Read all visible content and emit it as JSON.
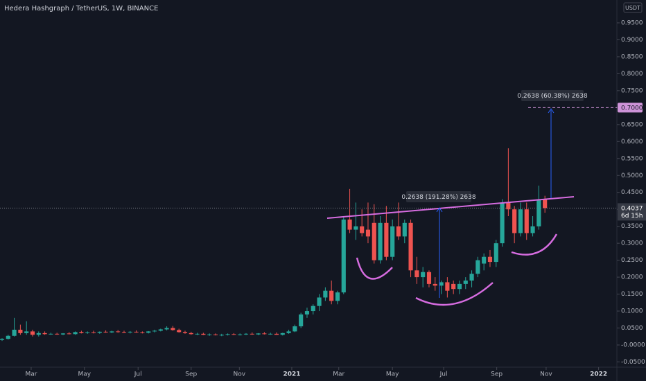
{
  "chart_data": {
    "type": "candlestick",
    "title": "Hedera Hashgraph / TetherUS, 1W, BINANCE",
    "currency": "USDT",
    "up_color": "#26a69a",
    "down_color": "#ef5350",
    "grid": false,
    "open": [
      0.015,
      0.018,
      0.027,
      0.045,
      0.035,
      0.04,
      0.03,
      0.035,
      0.032,
      0.033,
      0.031,
      0.034,
      0.032,
      0.038,
      0.035,
      0.037,
      0.036,
      0.039,
      0.037,
      0.04,
      0.038,
      0.037,
      0.039,
      0.037,
      0.036,
      0.04,
      0.042,
      0.046,
      0.05,
      0.044,
      0.038,
      0.035,
      0.032,
      0.033,
      0.03,
      0.031,
      0.029,
      0.03,
      0.032,
      0.03,
      0.031,
      0.033,
      0.031,
      0.034,
      0.032,
      0.033,
      0.03,
      0.035,
      0.04,
      0.055,
      0.09,
      0.1,
      0.115,
      0.14,
      0.16,
      0.13,
      0.155,
      0.37,
      0.34,
      0.35,
      0.34,
      0.36,
      0.25,
      0.36,
      0.26,
      0.35,
      0.32,
      0.36,
      0.22,
      0.2,
      0.215,
      0.18,
      0.175,
      0.185,
      0.18,
      0.165,
      0.18,
      0.19,
      0.21,
      0.24,
      0.26,
      0.245,
      0.3,
      0.42,
      0.4,
      0.33,
      0.4,
      0.33,
      0.35,
      0.43
    ],
    "high": [
      0.02,
      0.03,
      0.08,
      0.06,
      0.07,
      0.045,
      0.04,
      0.04,
      0.036,
      0.036,
      0.035,
      0.038,
      0.04,
      0.042,
      0.04,
      0.042,
      0.04,
      0.043,
      0.042,
      0.044,
      0.042,
      0.041,
      0.043,
      0.04,
      0.041,
      0.045,
      0.048,
      0.055,
      0.056,
      0.048,
      0.042,
      0.039,
      0.036,
      0.036,
      0.034,
      0.034,
      0.033,
      0.034,
      0.035,
      0.034,
      0.035,
      0.037,
      0.035,
      0.038,
      0.036,
      0.037,
      0.036,
      0.045,
      0.06,
      0.095,
      0.11,
      0.12,
      0.15,
      0.17,
      0.19,
      0.16,
      0.38,
      0.46,
      0.42,
      0.4,
      0.42,
      0.415,
      0.38,
      0.41,
      0.37,
      0.42,
      0.37,
      0.37,
      0.26,
      0.23,
      0.22,
      0.2,
      0.19,
      0.2,
      0.19,
      0.19,
      0.2,
      0.22,
      0.26,
      0.27,
      0.28,
      0.31,
      0.43,
      0.58,
      0.41,
      0.42,
      0.42,
      0.38,
      0.47,
      0.44
    ],
    "low": [
      0.012,
      0.016,
      0.025,
      0.03,
      0.03,
      0.025,
      0.025,
      0.03,
      0.03,
      0.03,
      0.029,
      0.031,
      0.03,
      0.034,
      0.033,
      0.034,
      0.033,
      0.036,
      0.035,
      0.036,
      0.035,
      0.034,
      0.036,
      0.034,
      0.034,
      0.037,
      0.04,
      0.043,
      0.042,
      0.036,
      0.033,
      0.03,
      0.029,
      0.029,
      0.027,
      0.028,
      0.026,
      0.028,
      0.029,
      0.028,
      0.029,
      0.03,
      0.029,
      0.031,
      0.03,
      0.03,
      0.028,
      0.033,
      0.038,
      0.05,
      0.08,
      0.09,
      0.1,
      0.13,
      0.12,
      0.12,
      0.15,
      0.33,
      0.31,
      0.32,
      0.3,
      0.24,
      0.24,
      0.25,
      0.25,
      0.31,
      0.3,
      0.2,
      0.18,
      0.17,
      0.17,
      0.16,
      0.15,
      0.14,
      0.15,
      0.15,
      0.165,
      0.17,
      0.2,
      0.22,
      0.23,
      0.23,
      0.29,
      0.38,
      0.3,
      0.32,
      0.31,
      0.32,
      0.34,
      0.39
    ],
    "close": [
      0.018,
      0.027,
      0.045,
      0.035,
      0.04,
      0.03,
      0.035,
      0.032,
      0.033,
      0.031,
      0.034,
      0.032,
      0.038,
      0.035,
      0.037,
      0.036,
      0.039,
      0.037,
      0.04,
      0.038,
      0.037,
      0.039,
      0.037,
      0.036,
      0.04,
      0.042,
      0.046,
      0.05,
      0.044,
      0.038,
      0.035,
      0.032,
      0.033,
      0.03,
      0.031,
      0.029,
      0.03,
      0.032,
      0.03,
      0.031,
      0.033,
      0.031,
      0.034,
      0.032,
      0.033,
      0.03,
      0.035,
      0.04,
      0.055,
      0.09,
      0.1,
      0.115,
      0.14,
      0.16,
      0.13,
      0.155,
      0.37,
      0.34,
      0.35,
      0.33,
      0.32,
      0.25,
      0.36,
      0.26,
      0.35,
      0.32,
      0.36,
      0.22,
      0.2,
      0.215,
      0.18,
      0.175,
      0.185,
      0.16,
      0.165,
      0.18,
      0.19,
      0.21,
      0.25,
      0.26,
      0.245,
      0.3,
      0.42,
      0.4,
      0.33,
      0.4,
      0.33,
      0.35,
      0.43,
      0.4037
    ],
    "xlim": [
      -0.34,
      100.8
    ],
    "xticks": [
      {
        "value": 4.77,
        "label": "Mar"
      },
      {
        "value": 13.5,
        "label": "May"
      },
      {
        "value": 22.3,
        "label": "Jul"
      },
      {
        "value": 31.0,
        "label": "Sep"
      },
      {
        "value": 38.9,
        "label": "Nov"
      },
      {
        "value": 47.5,
        "label": "2021"
      },
      {
        "value": 55.2,
        "label": "Mar"
      },
      {
        "value": 64.0,
        "label": "May"
      },
      {
        "value": 72.4,
        "label": "Jul"
      },
      {
        "value": 81.1,
        "label": "Sep"
      },
      {
        "value": 89.2,
        "label": "Nov"
      },
      {
        "value": 97.8,
        "label": "2022"
      }
    ],
    "ylim": [
      -0.0654,
      1.0174
    ],
    "yticks": [
      {
        "value": -0.05,
        "label": "-0.0500"
      },
      {
        "value": 0,
        "label": "-0.0000"
      },
      {
        "value": 0.05,
        "label": "0.0500"
      },
      {
        "value": 0.1,
        "label": "0.1000"
      },
      {
        "value": 0.15,
        "label": "0.1500"
      },
      {
        "value": 0.2,
        "label": "0.2000"
      },
      {
        "value": 0.25,
        "label": "0.2500"
      },
      {
        "value": 0.3,
        "label": "0.3000"
      },
      {
        "value": 0.35,
        "label": "0.3500"
      },
      {
        "value": 0.4,
        "label": "0.4000"
      },
      {
        "value": 0.45,
        "label": "0.4500"
      },
      {
        "value": 0.5,
        "label": "0.5000"
      },
      {
        "value": 0.55,
        "label": "0.5500"
      },
      {
        "value": 0.6,
        "label": "0.6000"
      },
      {
        "value": 0.65,
        "label": "0.6500"
      },
      {
        "value": 0.7,
        "label": "0.7000"
      },
      {
        "value": 0.75,
        "label": "0.7500"
      },
      {
        "value": 0.8,
        "label": "0.8000"
      },
      {
        "value": 0.85,
        "label": "0.8500"
      },
      {
        "value": 0.9,
        "label": "0.9000"
      },
      {
        "value": 0.95,
        "label": "0.9500"
      }
    ],
    "last_price": 0.4037,
    "countdown": "6d 15h",
    "target": {
      "value": 0.7,
      "label": "0.7000"
    },
    "annotations": [
      "0.2638 (191.28%) 2638",
      "0.2638 (60.38%) 2638"
    ]
  }
}
